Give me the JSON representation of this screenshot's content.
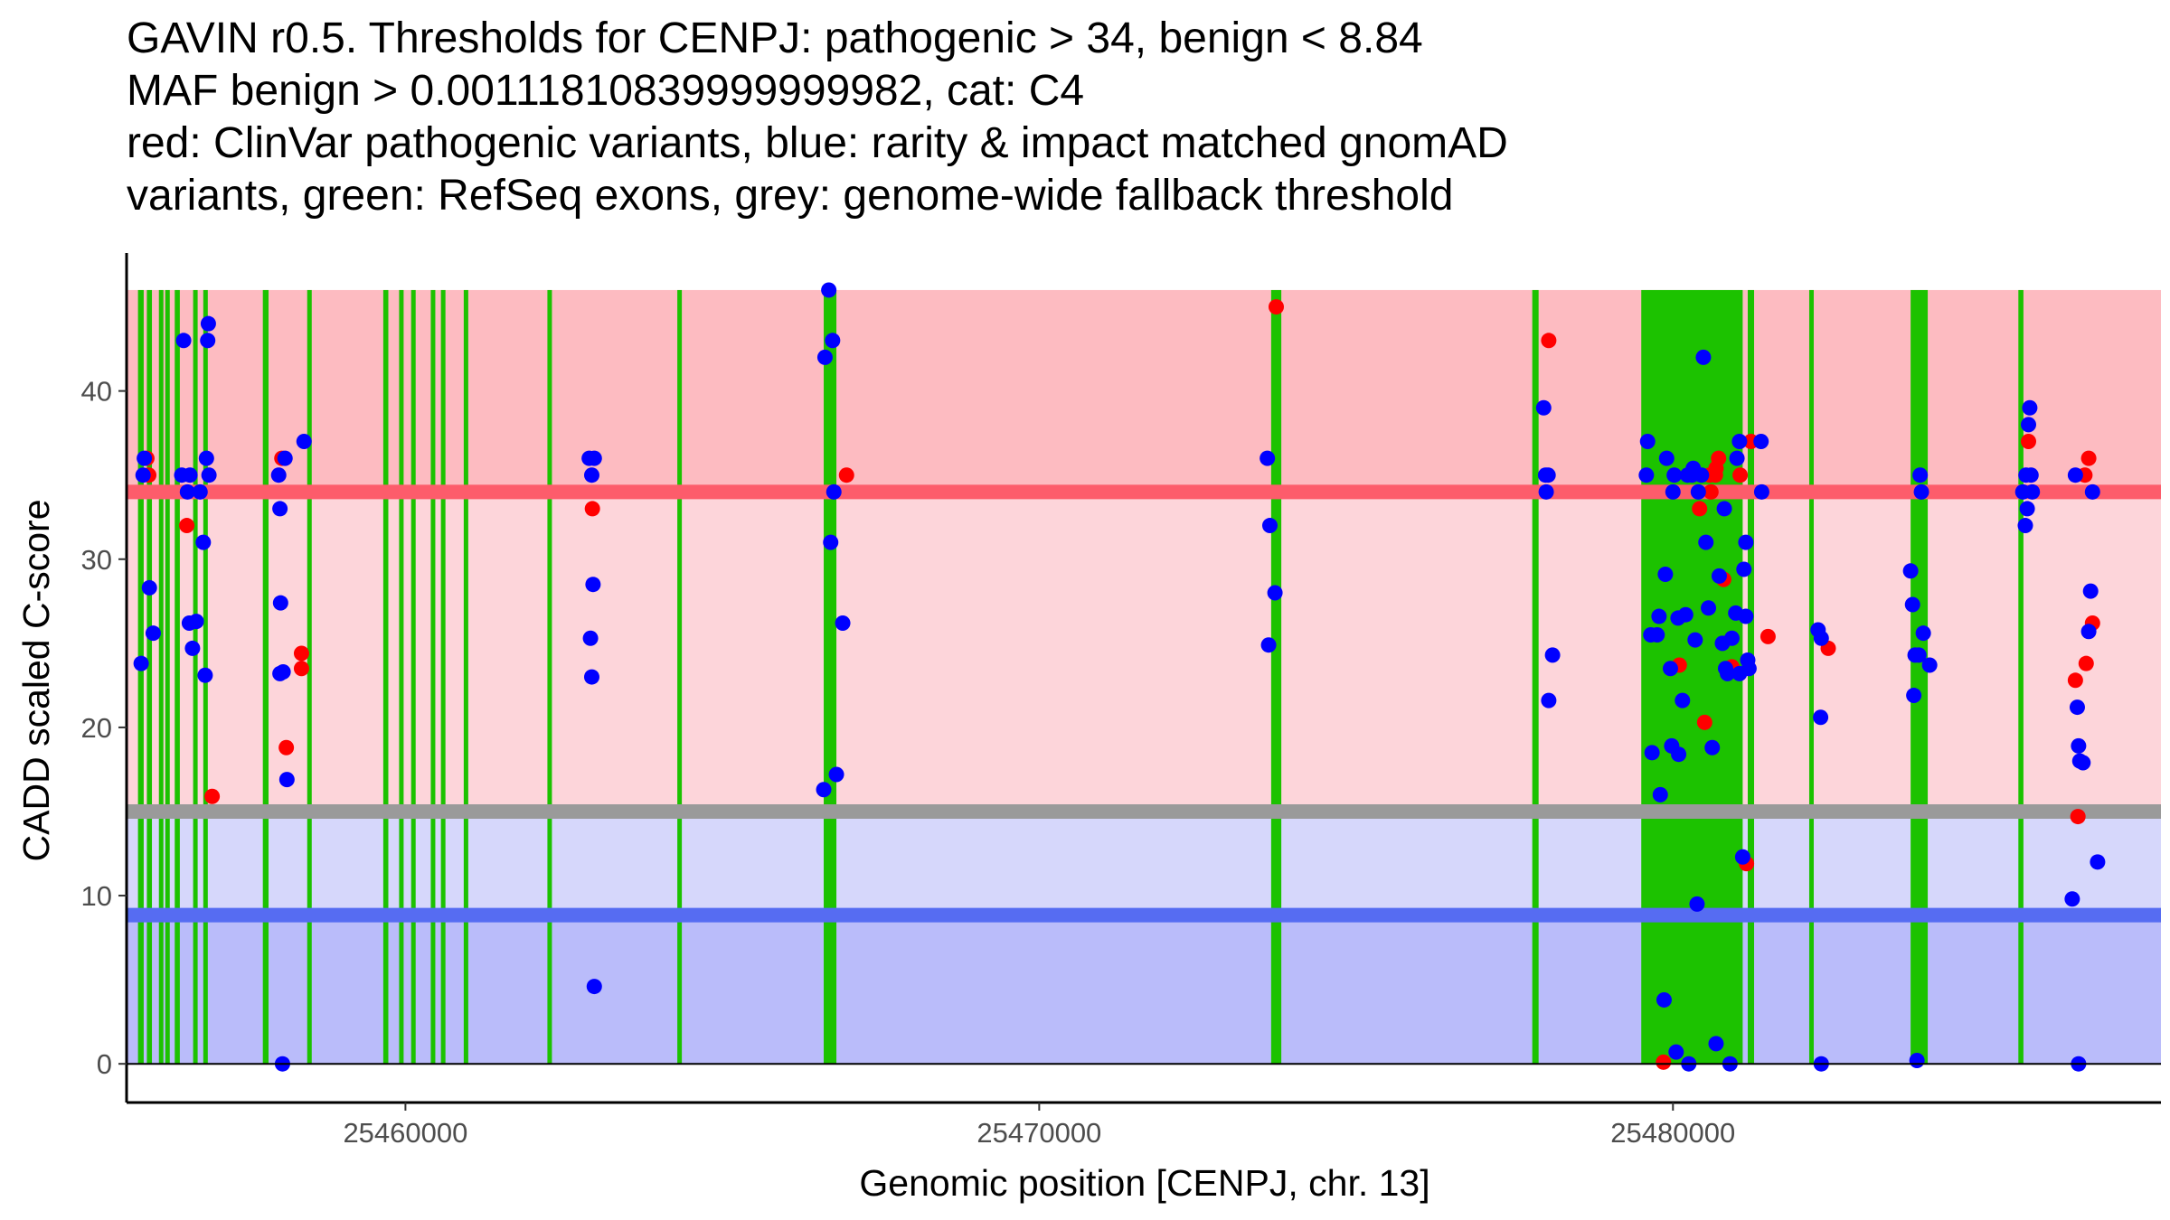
{
  "title_lines": [
    "GAVIN r0.5. Thresholds for CENPJ: pathogenic > 34, benign < 8.84",
    "MAF benign > 0.00111810839999999982, cat: C4",
    "red: ClinVar pathogenic variants, blue: rarity & impact matched gnomAD",
    "variants, green: RefSeq exons, grey: genome-wide fallback threshold"
  ],
  "colors": {
    "pathogenic_region": "#fdbbc1",
    "light_pathogenic_region": "#fdd5da",
    "light_benign_region": "#d6d7fb",
    "benign_region": "#babcfa",
    "pathogenic_line": "#fd5c6b",
    "benign_line": "#566cf2",
    "fallback_line": "#9a9a9a",
    "exon": "#1cc200",
    "clinvar_point": "#ff0000",
    "gnomad_point": "#0000ff",
    "axis": "#000000"
  },
  "chart_data": {
    "type": "scatter",
    "gene": "CENPJ",
    "chromosome": "13",
    "title": "GAVIN r0.5. Thresholds for CENPJ: pathogenic > 34, benign < 8.84",
    "xlabel": "Genomic position [CENPJ, chr. 13]",
    "ylabel": "CADD scaled C-score",
    "xlim": [
      25455600,
      25487700
    ],
    "ylim": [
      -2.3,
      48.2
    ],
    "x_ticks": [
      25460000,
      25470000,
      25480000
    ],
    "x_tick_labels": [
      "25460000",
      "25470000",
      "25480000"
    ],
    "y_ticks": [
      0,
      10,
      20,
      30,
      40
    ],
    "y_tick_labels": [
      "0",
      "10",
      "20",
      "30",
      "40"
    ],
    "thresholds": {
      "pathogenic": 34,
      "benign": 8.84,
      "fallback": 15,
      "max_score": 46,
      "maf_benign": "0.00111810839999999982",
      "category": "C4"
    },
    "exons": [
      [
        25455780,
        25455870
      ],
      [
        25455920,
        25456000
      ],
      [
        25456110,
        25456170
      ],
      [
        25456210,
        25456280
      ],
      [
        25456360,
        25456440
      ],
      [
        25456650,
        25456720
      ],
      [
        25456810,
        25456870
      ],
      [
        25457750,
        25457840
      ],
      [
        25458450,
        25458520
      ],
      [
        25459650,
        25459730
      ],
      [
        25459900,
        25459960
      ],
      [
        25460090,
        25460150
      ],
      [
        25460400,
        25460460
      ],
      [
        25460560,
        25460620
      ],
      [
        25460920,
        25460980
      ],
      [
        25462240,
        25462300
      ],
      [
        25464290,
        25464350
      ],
      [
        25466600,
        25466800
      ],
      [
        25473660,
        25473820
      ],
      [
        25477780,
        25477880
      ],
      [
        25479500,
        25481100
      ],
      [
        25481180,
        25481280
      ],
      [
        25482150,
        25482210
      ],
      [
        25483750,
        25484020
      ],
      [
        25485450,
        25485530
      ]
    ],
    "series": [
      {
        "name": "ClinVar pathogenic variants",
        "color": "#ff0000",
        "points": [
          [
            25455920,
            36
          ],
          [
            25455950,
            35
          ],
          [
            25456550,
            32
          ],
          [
            25456950,
            15.9
          ],
          [
            25458050,
            36
          ],
          [
            25458120,
            18.8
          ],
          [
            25458360,
            24.4
          ],
          [
            25458360,
            23.5
          ],
          [
            25462950,
            33
          ],
          [
            25466960,
            35
          ],
          [
            25473740,
            45
          ],
          [
            25478040,
            43
          ],
          [
            25479850,
            0.1
          ],
          [
            25480100,
            23.7
          ],
          [
            25480420,
            33
          ],
          [
            25480500,
            20.3
          ],
          [
            25480580,
            35
          ],
          [
            25480600,
            34
          ],
          [
            25480670,
            35
          ],
          [
            25480680,
            35.4
          ],
          [
            25480720,
            36
          ],
          [
            25480800,
            28.8
          ],
          [
            25480930,
            23.6
          ],
          [
            25481060,
            35
          ],
          [
            25481160,
            11.9
          ],
          [
            25481230,
            37
          ],
          [
            25481500,
            25.4
          ],
          [
            25482450,
            24.7
          ],
          [
            25485610,
            37
          ],
          [
            25486350,
            22.8
          ],
          [
            25486390,
            14.7
          ],
          [
            25486500,
            35
          ],
          [
            25486520,
            23.8
          ],
          [
            25486560,
            36
          ],
          [
            25486620,
            26.2
          ]
        ]
      },
      {
        "name": "rarity & impact matched gnomAD variants",
        "color": "#0000ff",
        "points": [
          [
            25455860,
            35
          ],
          [
            25455880,
            36
          ],
          [
            25455960,
            28.3
          ],
          [
            25456020,
            25.6
          ],
          [
            25455830,
            23.8
          ],
          [
            25456470,
            35
          ],
          [
            25456500,
            43
          ],
          [
            25456560,
            34
          ],
          [
            25456590,
            26.2
          ],
          [
            25456600,
            35
          ],
          [
            25456640,
            24.7
          ],
          [
            25456700,
            26.3
          ],
          [
            25456760,
            34
          ],
          [
            25456810,
            31
          ],
          [
            25456840,
            23.1
          ],
          [
            25456860,
            36
          ],
          [
            25456880,
            43
          ],
          [
            25456890,
            44
          ],
          [
            25456900,
            35
          ],
          [
            25458000,
            35
          ],
          [
            25458020,
            33
          ],
          [
            25458030,
            27.4
          ],
          [
            25458020,
            23.2
          ],
          [
            25458070,
            23.3
          ],
          [
            25458100,
            36
          ],
          [
            25458130,
            16.9
          ],
          [
            25458060,
            0
          ],
          [
            25458400,
            37
          ],
          [
            25462900,
            36
          ],
          [
            25462940,
            35
          ],
          [
            25462960,
            28.5
          ],
          [
            25462980,
            36
          ],
          [
            25462920,
            25.3
          ],
          [
            25462940,
            23
          ],
          [
            25462980,
            4.6
          ],
          [
            25466600,
            16.3
          ],
          [
            25466620,
            42
          ],
          [
            25466680,
            46
          ],
          [
            25466710,
            31
          ],
          [
            25466740,
            43
          ],
          [
            25466760,
            34
          ],
          [
            25466800,
            17.2
          ],
          [
            25466900,
            26.2
          ],
          [
            25473600,
            36
          ],
          [
            25473640,
            32
          ],
          [
            25473620,
            24.9
          ],
          [
            25473720,
            28
          ],
          [
            25477960,
            39
          ],
          [
            25477990,
            35
          ],
          [
            25478000,
            34
          ],
          [
            25478030,
            35
          ],
          [
            25478040,
            21.6
          ],
          [
            25478100,
            24.3
          ],
          [
            25479600,
            37
          ],
          [
            25479580,
            35
          ],
          [
            25479650,
            25.5
          ],
          [
            25479670,
            18.5
          ],
          [
            25479750,
            25.5
          ],
          [
            25479780,
            26.6
          ],
          [
            25479800,
            16
          ],
          [
            25479860,
            3.8
          ],
          [
            25479880,
            29.1
          ],
          [
            25479900,
            36
          ],
          [
            25479960,
            23.5
          ],
          [
            25479980,
            18.9
          ],
          [
            25480000,
            34
          ],
          [
            25480020,
            35
          ],
          [
            25480050,
            0.7
          ],
          [
            25480080,
            26.5
          ],
          [
            25480090,
            18.4
          ],
          [
            25480150,
            21.6
          ],
          [
            25480200,
            26.7
          ],
          [
            25480230,
            35
          ],
          [
            25480250,
            0
          ],
          [
            25480300,
            35
          ],
          [
            25480320,
            35.4
          ],
          [
            25480350,
            25.2
          ],
          [
            25480380,
            9.5
          ],
          [
            25480400,
            34
          ],
          [
            25480450,
            35
          ],
          [
            25480480,
            42
          ],
          [
            25480520,
            31
          ],
          [
            25480560,
            27.1
          ],
          [
            25480620,
            18.8
          ],
          [
            25480680,
            1.2
          ],
          [
            25480730,
            29
          ],
          [
            25480780,
            25
          ],
          [
            25480810,
            33
          ],
          [
            25480830,
            23.5
          ],
          [
            25480860,
            23.2
          ],
          [
            25480900,
            0
          ],
          [
            25480930,
            25.3
          ],
          [
            25480990,
            26.8
          ],
          [
            25481010,
            36
          ],
          [
            25481050,
            37
          ],
          [
            25481050,
            23.2
          ],
          [
            25481100,
            12.3
          ],
          [
            25481120,
            29.4
          ],
          [
            25481150,
            31
          ],
          [
            25481150,
            26.6
          ],
          [
            25481180,
            24
          ],
          [
            25481200,
            23.5
          ],
          [
            25481390,
            37
          ],
          [
            25481400,
            34
          ],
          [
            25482290,
            25.8
          ],
          [
            25482340,
            25.3
          ],
          [
            25482330,
            20.6
          ],
          [
            25482340,
            0
          ],
          [
            25483750,
            29.3
          ],
          [
            25483780,
            27.3
          ],
          [
            25483820,
            24.3
          ],
          [
            25483800,
            21.9
          ],
          [
            25483880,
            24.3
          ],
          [
            25483850,
            0.2
          ],
          [
            25483900,
            35
          ],
          [
            25483920,
            34
          ],
          [
            25483950,
            25.6
          ],
          [
            25484050,
            23.7
          ],
          [
            25485520,
            34
          ],
          [
            25485570,
            35
          ],
          [
            25485590,
            33
          ],
          [
            25485610,
            38
          ],
          [
            25485630,
            39
          ],
          [
            25485560,
            32
          ],
          [
            25485650,
            35
          ],
          [
            25485670,
            34
          ],
          [
            25486300,
            9.8
          ],
          [
            25486350,
            35
          ],
          [
            25486380,
            21.2
          ],
          [
            25486400,
            18.9
          ],
          [
            25486420,
            18
          ],
          [
            25486470,
            17.9
          ],
          [
            25486400,
            0
          ],
          [
            25486560,
            25.7
          ],
          [
            25486590,
            28.1
          ],
          [
            25486620,
            34
          ],
          [
            25486700,
            12
          ]
        ]
      }
    ]
  }
}
